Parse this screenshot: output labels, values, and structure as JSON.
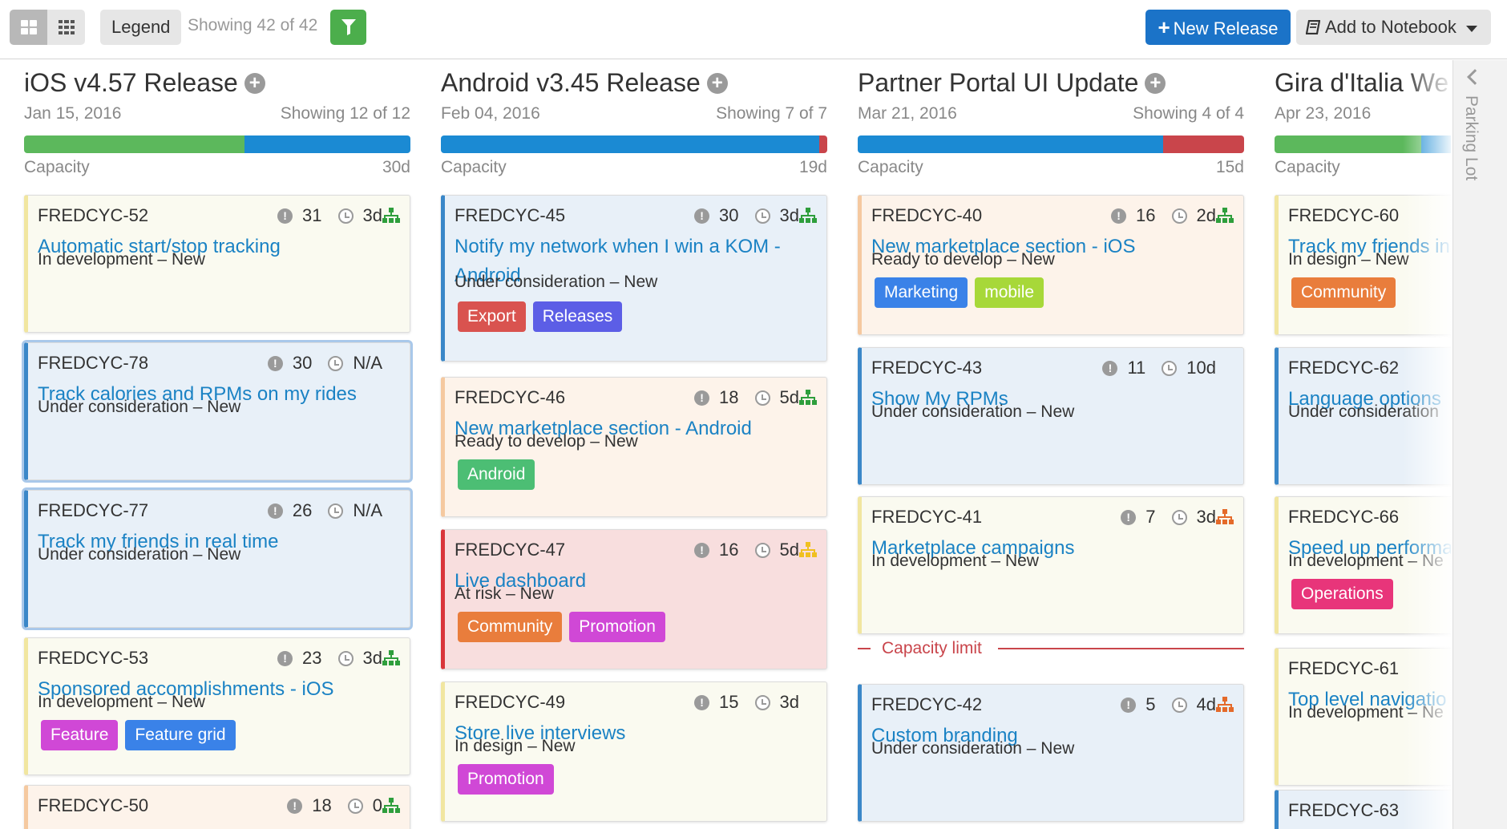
{
  "toolbar": {
    "view_card_icon": "card-view-icon",
    "view_grid_icon": "grid-view-icon",
    "legend_label": "Legend",
    "showing_text": "Showing 42 of 42",
    "filter_icon": "filter-icon",
    "new_release_plus": "+",
    "new_release_label": "New Release",
    "notebook_label": "Add to Notebook"
  },
  "colors": {
    "green": "#5cb85c",
    "blue": "#1b8ad3",
    "red": "#c9454b",
    "title_link": "#1a82c4",
    "tag_red": "#d9534f",
    "tag_indigo": "#5c5ee6",
    "tag_green": "#4cbe74",
    "tag_blue": "#3a82e8",
    "tag_lime": "#a7d839",
    "tag_orange": "#e97d3c",
    "tag_magenta": "#d048d6",
    "tag_pink": "#e8357a"
  },
  "columns": [
    {
      "title": "iOS v4.57 Release",
      "date": "Jan 15, 2016",
      "showing": "Showing 12 of 12",
      "capacity_label": "Capacity",
      "capacity_days": "30d",
      "capacity_segments": [
        {
          "color": "#5cb85c",
          "fraction": 0.57
        },
        {
          "color": "#1b8ad3",
          "fraction": 0.43
        }
      ],
      "cards": [
        {
          "id": "FREDCYC-52",
          "score": "31",
          "estimate": "3d",
          "hier_color": "#2e9e3c",
          "title": "Automatic start/stop tracking",
          "status": "In development – New",
          "bg": "#fafaf0",
          "border": "#f1e6a0",
          "tags": []
        },
        {
          "id": "FREDCYC-78",
          "score": "30",
          "estimate": "N/A",
          "hier_color": "",
          "title": "Track calories and RPMs on my rides",
          "status": "Under consideration – New",
          "bg": "#e8f0f8",
          "border": "#3a87c8",
          "selected": true,
          "tags": []
        },
        {
          "id": "FREDCYC-77",
          "score": "26",
          "estimate": "N/A",
          "hier_color": "",
          "title": "Track my friends in real time",
          "status": "Under consideration – New",
          "bg": "#e8f0f8",
          "border": "#3a87c8",
          "selected": true,
          "tags": []
        },
        {
          "id": "FREDCYC-53",
          "score": "23",
          "estimate": "3d",
          "hier_color": "#2e9e3c",
          "title": "Sponsored accomplishments - iOS",
          "status": "In development – New",
          "bg": "#fafaf0",
          "border": "#f1e6a0",
          "tags": [
            {
              "label": "Feature",
              "color": "#d048d6"
            },
            {
              "label": "Feature grid",
              "color": "#3a82e8"
            }
          ]
        },
        {
          "id": "FREDCYC-50",
          "score": "18",
          "estimate": "0",
          "hier_color": "#2e9e3c",
          "title": "",
          "status": "",
          "bg": "#fdf3ea",
          "border": "#f5c9a0",
          "tags": []
        }
      ]
    },
    {
      "title": "Android v3.45 Release",
      "date": "Feb 04, 2016",
      "showing": "Showing 7 of 7",
      "capacity_label": "Capacity",
      "capacity_days": "19d",
      "capacity_segments": [
        {
          "color": "#1b8ad3",
          "fraction": 0.98
        },
        {
          "color": "#c9454b",
          "fraction": 0.02
        }
      ],
      "cards": [
        {
          "id": "FREDCYC-45",
          "score": "30",
          "estimate": "3d",
          "hier_color": "#2e9e3c",
          "title": "Notify my network when I win a KOM - Android",
          "status": "Under consideration – New",
          "bg": "#e8f0f8",
          "border": "#3a87c8",
          "tags": [
            {
              "label": "Export",
              "color": "#d9534f"
            },
            {
              "label": "Releases",
              "color": "#5c5ee6"
            }
          ]
        },
        {
          "id": "FREDCYC-46",
          "score": "18",
          "estimate": "5d",
          "hier_color": "#2e9e3c",
          "title": "New marketplace section - Android",
          "status": "Ready to develop – New",
          "bg": "#fdf3ea",
          "border": "#f5c9a0",
          "tags": [
            {
              "label": "Android",
              "color": "#4cbe74"
            }
          ]
        },
        {
          "id": "FREDCYC-47",
          "score": "16",
          "estimate": "5d",
          "hier_color": "#f0c020",
          "title": "Live dashboard",
          "status": "At risk – New",
          "bg": "#f8dede",
          "border": "#d9353a",
          "tags": [
            {
              "label": "Community",
              "color": "#e97d3c"
            },
            {
              "label": "Promotion",
              "color": "#d048d6"
            }
          ]
        },
        {
          "id": "FREDCYC-49",
          "score": "15",
          "estimate": "3d",
          "hier_color": "",
          "title": "Store live interviews",
          "status": "In design – New",
          "bg": "#fafaf0",
          "border": "#f1e6a0",
          "tags": [
            {
              "label": "Promotion",
              "color": "#d048d6"
            }
          ]
        }
      ]
    },
    {
      "title": "Partner Portal UI Update",
      "date": "Mar 21, 2016",
      "showing": "Showing 4 of 4",
      "capacity_label": "Capacity",
      "capacity_days": "15d",
      "capacity_segments": [
        {
          "color": "#1b8ad3",
          "fraction": 0.79
        },
        {
          "color": "#c9454b",
          "fraction": 0.21
        }
      ],
      "capacity_limit_label": "Capacity limit",
      "cards": [
        {
          "id": "FREDCYC-40",
          "score": "16",
          "estimate": "2d",
          "hier_color": "#2e9e3c",
          "title": "New marketplace section - iOS",
          "status": "Ready to develop – New",
          "bg": "#fdf3ea",
          "border": "#f5c9a0",
          "tags": [
            {
              "label": "Marketing",
              "color": "#3a82e8"
            },
            {
              "label": "mobile",
              "color": "#a7d839"
            }
          ]
        },
        {
          "id": "FREDCYC-43",
          "score": "11",
          "estimate": "10d",
          "hier_color": "",
          "title": "Show My RPMs",
          "status": "Under consideration – New",
          "bg": "#e8f0f8",
          "border": "#3a87c8",
          "tags": []
        },
        {
          "id": "FREDCYC-41",
          "score": "7",
          "estimate": "3d",
          "hier_color": "#e46a2a",
          "title": "Marketplace campaigns",
          "status": "In development – New",
          "bg": "#fafaf0",
          "border": "#f1e6a0",
          "tags": []
        },
        {
          "id": "FREDCYC-42",
          "score": "5",
          "estimate": "4d",
          "hier_color": "#e46a2a",
          "title": "Custom branding",
          "status": "Under consideration – New",
          "bg": "#e8f0f8",
          "border": "#3a87c8",
          "tags": []
        }
      ]
    },
    {
      "title": "Gira d'Italia We",
      "date": "Apr 23, 2016",
      "showing": "",
      "capacity_label": "Capacity",
      "capacity_days": "",
      "capacity_segments": [
        {
          "color": "#5cb85c",
          "fraction": 0.38
        },
        {
          "color": "#1b8ad3",
          "fraction": 0.62
        }
      ],
      "cards": [
        {
          "id": "FREDCYC-60",
          "title": "Track my friends in",
          "status": "In design – New",
          "bg": "#fafaf0",
          "border": "#f1e6a0",
          "tags": [
            {
              "label": "Community",
              "color": "#e97d3c"
            }
          ]
        },
        {
          "id": "FREDCYC-62",
          "title": "Language options",
          "status": "Under consideration",
          "bg": "#e8f0f8",
          "border": "#3a87c8",
          "tags": []
        },
        {
          "id": "FREDCYC-66",
          "title": "Speed up performa",
          "status": "In development – Ne",
          "bg": "#fafaf0",
          "border": "#f1e6a0",
          "tags": [
            {
              "label": "Operations",
              "color": "#e8357a"
            }
          ]
        },
        {
          "id": "FREDCYC-61",
          "title": "Top level navigatio",
          "status": "In development – Ne",
          "bg": "#fafaf0",
          "border": "#f1e6a0",
          "tags": []
        },
        {
          "id": "FREDCYC-63",
          "title": "",
          "status": "",
          "bg": "#e8f0f8",
          "border": "#3a87c8",
          "tags": []
        }
      ]
    }
  ],
  "parking_lot": {
    "label": "Parking Lot",
    "icon": "chevron-left-icon"
  }
}
